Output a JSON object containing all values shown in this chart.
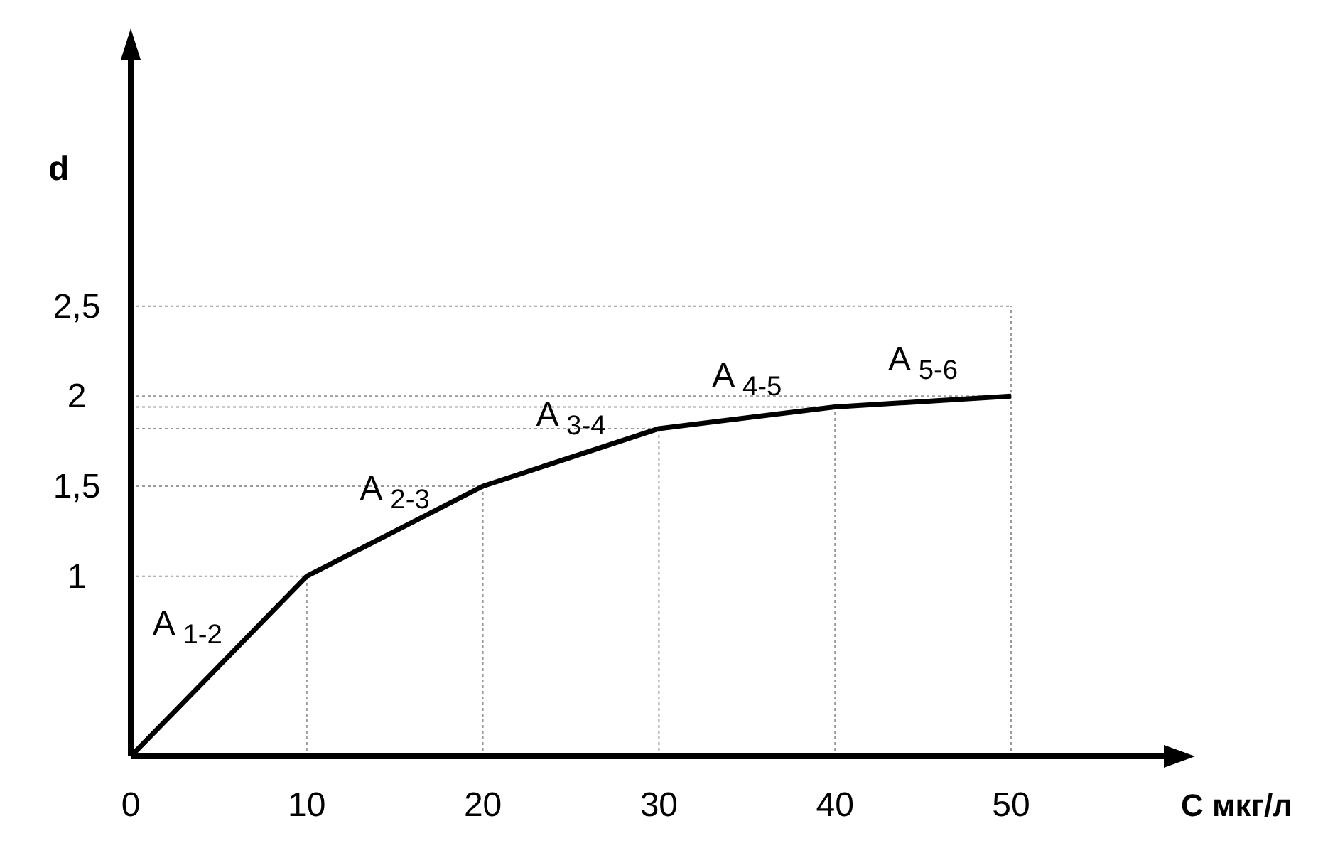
{
  "chart_data": {
    "type": "line",
    "xlabel": "С мкг/л",
    "ylabel": "d",
    "x": [
      0,
      10,
      20,
      30,
      40,
      50
    ],
    "series": [
      {
        "color": "#000000",
        "values": [
          0,
          1.0,
          1.5,
          1.82,
          1.94,
          2.0
        ]
      }
    ],
    "xlim": [
      0,
      59
    ],
    "ylim": [
      0,
      3.9
    ],
    "xticks": [
      0,
      10,
      20,
      30,
      40,
      50
    ],
    "yticks": [
      1,
      {
        "value": 1.5,
        "label": "1,5"
      },
      2,
      {
        "value": 2.5,
        "label": "2,5"
      }
    ],
    "annotations": [
      "A $_{1-2}$",
      "A $_{2-3}$",
      "A $_{3-4}$",
      "A $_{4-5}$",
      "A $_{5-6}$"
    ],
    "ref_lines": [
      {
        "axis": "y",
        "value": 1,
        "color": "#999999",
        "line_style": "dotted"
      },
      {
        "axis": "y",
        "value": 1.5,
        "color": "#999999",
        "line_style": "dotted"
      },
      {
        "axis": "y",
        "value": 1.82,
        "color": "#999999",
        "line_style": "dotted"
      },
      {
        "axis": "y",
        "value": 1.94,
        "color": "#999999",
        "line_style": "dotted"
      },
      {
        "axis": "y",
        "value": 2,
        "color": "#999999",
        "line_style": "dotted"
      },
      {
        "axis": "y",
        "value": 2.5,
        "color": "#999999",
        "line_style": "dotted"
      },
      {
        "axis": "x",
        "value": 10,
        "color": "#999999",
        "line_style": "dotted"
      },
      {
        "axis": "x",
        "value": 20,
        "color": "#999999",
        "line_style": "dotted"
      },
      {
        "axis": "x",
        "value": 30,
        "color": "#999999",
        "line_style": "dotted"
      },
      {
        "axis": "x",
        "value": 40,
        "color": "#999999",
        "line_style": "dotted"
      },
      {
        "axis": "x",
        "value": 50,
        "color": "#999999",
        "line_style": "dotted"
      }
    ],
    "marker": "none",
    "line_style": "solid"
  }
}
